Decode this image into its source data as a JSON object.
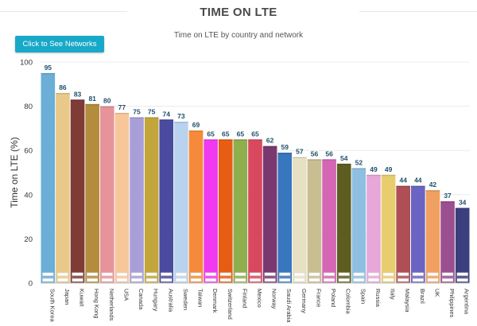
{
  "header": {
    "title": "TIME ON LTE",
    "subtitle": "Time on LTE by country and network"
  },
  "toolbar": {
    "networks_button_label": "Click to See Networks"
  },
  "chart_data": {
    "type": "bar",
    "title": "TIME ON LTE",
    "subtitle": "Time on LTE by country and network",
    "xlabel": "",
    "ylabel": "Time on LTE (%)",
    "ylim": [
      0,
      100
    ],
    "yticks": [
      0,
      20,
      40,
      60,
      80,
      100
    ],
    "grid": true,
    "categories": [
      "South Korea",
      "Japan",
      "Kuwait",
      "Hong Kong",
      "Netherlands",
      "USA",
      "Canada",
      "Hungary",
      "Australia",
      "Sweden",
      "Taiwan",
      "Denmark",
      "Switzerland",
      "Finland",
      "Mexico",
      "Norway",
      "Saudi Arabia",
      "Germany",
      "France",
      "Poland",
      "Colombia",
      "Spain",
      "Russia",
      "Italy",
      "Malaysia",
      "Brazil",
      "UK",
      "Philippines",
      "Argentina"
    ],
    "values": [
      95,
      86,
      83,
      81,
      80,
      77,
      75,
      75,
      74,
      73,
      69,
      65,
      65,
      65,
      65,
      62,
      59,
      57,
      56,
      56,
      54,
      52,
      49,
      49,
      44,
      44,
      42,
      37,
      34
    ],
    "colors": [
      "#6baed6",
      "#e8c98a",
      "#7f3b36",
      "#b38c3d",
      "#e7939a",
      "#f7c79a",
      "#a99fd8",
      "#c2a53b",
      "#4a4aa0",
      "#b9d3ee",
      "#f58b3a",
      "#f03af0",
      "#e85d14",
      "#8fae4d",
      "#d9495e",
      "#7a3870",
      "#3876bd",
      "#e7e0c2",
      "#c9be92",
      "#d565b5",
      "#5d5d20",
      "#8fbfe0",
      "#e7a8d9",
      "#e7cd6d",
      "#ad4f55",
      "#6a64c2",
      "#f0a060",
      "#9b4f8f",
      "#3b3f7e"
    ]
  }
}
